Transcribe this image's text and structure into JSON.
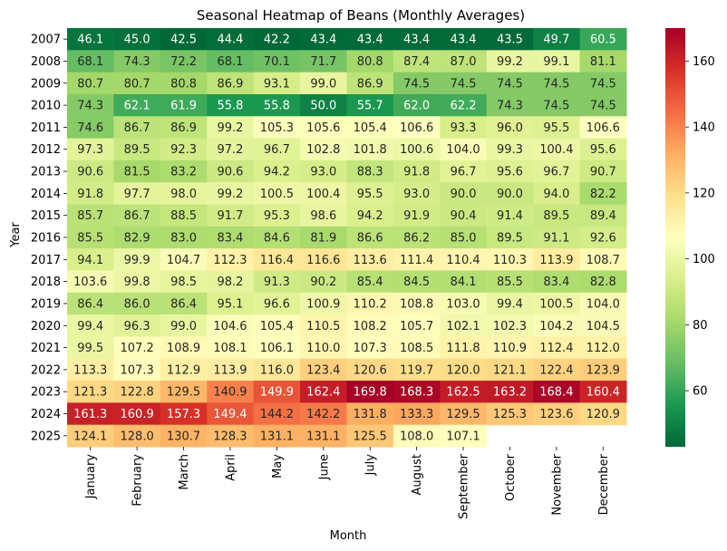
{
  "chart_data": {
    "type": "heatmap",
    "title": "Seasonal Heatmap of Beans (Monthly Averages)",
    "xlabel": "Month",
    "ylabel": "Year",
    "colormap": "RdYlGn_r",
    "colorbar": {
      "min": 43,
      "max": 170,
      "ticks": [
        60,
        80,
        100,
        120,
        140,
        160
      ]
    },
    "x": [
      "January",
      "February",
      "March",
      "April",
      "May",
      "June",
      "July",
      "August",
      "September",
      "October",
      "November",
      "December"
    ],
    "y": [
      "2007",
      "2008",
      "2009",
      "2010",
      "2011",
      "2012",
      "2013",
      "2014",
      "2015",
      "2016",
      "2017",
      "2018",
      "2019",
      "2020",
      "2021",
      "2022",
      "2023",
      "2024",
      "2025"
    ],
    "values": [
      [
        46.1,
        45.0,
        42.5,
        44.4,
        42.2,
        43.4,
        43.4,
        43.4,
        43.4,
        43.5,
        49.7,
        60.5
      ],
      [
        68.1,
        74.3,
        72.2,
        68.1,
        70.1,
        71.7,
        80.8,
        87.4,
        87.0,
        99.2,
        99.1,
        81.1
      ],
      [
        80.7,
        80.7,
        80.8,
        86.9,
        93.1,
        99.0,
        86.9,
        74.5,
        74.5,
        74.5,
        74.5,
        74.5
      ],
      [
        74.3,
        62.1,
        61.9,
        55.8,
        55.8,
        50.0,
        55.7,
        62.0,
        62.2,
        74.3,
        74.5,
        74.5
      ],
      [
        74.6,
        86.7,
        86.9,
        99.2,
        105.3,
        105.6,
        105.4,
        106.6,
        93.3,
        96.0,
        95.5,
        106.6
      ],
      [
        97.3,
        89.5,
        92.3,
        97.2,
        96.7,
        102.8,
        101.8,
        100.6,
        104.0,
        99.3,
        100.4,
        95.6
      ],
      [
        90.6,
        81.5,
        83.2,
        90.6,
        94.2,
        93.0,
        88.3,
        91.8,
        96.7,
        95.6,
        96.7,
        90.7
      ],
      [
        91.8,
        97.7,
        98.0,
        99.2,
        100.5,
        100.4,
        95.5,
        93.0,
        90.0,
        90.0,
        94.0,
        82.2
      ],
      [
        85.7,
        86.7,
        88.5,
        91.7,
        95.3,
        98.6,
        94.2,
        91.9,
        90.4,
        91.4,
        89.5,
        89.4
      ],
      [
        85.5,
        82.9,
        83.0,
        83.4,
        84.6,
        81.9,
        86.6,
        86.2,
        85.0,
        89.5,
        91.1,
        92.6
      ],
      [
        94.1,
        99.9,
        104.7,
        112.3,
        116.4,
        116.6,
        113.6,
        111.4,
        110.4,
        110.3,
        113.9,
        108.7
      ],
      [
        103.6,
        99.8,
        98.5,
        98.2,
        91.3,
        90.2,
        85.4,
        84.5,
        84.1,
        85.5,
        83.4,
        82.8
      ],
      [
        86.4,
        86.0,
        86.4,
        95.1,
        96.6,
        100.9,
        110.2,
        108.8,
        103.0,
        99.4,
        100.5,
        104.0
      ],
      [
        99.4,
        96.3,
        99.0,
        104.6,
        105.4,
        110.5,
        108.2,
        105.7,
        102.1,
        102.3,
        104.2,
        104.5
      ],
      [
        99.5,
        107.2,
        108.9,
        108.1,
        106.1,
        110.0,
        107.3,
        108.5,
        111.8,
        110.9,
        112.4,
        112.0
      ],
      [
        113.3,
        107.3,
        112.9,
        113.9,
        116.0,
        123.4,
        120.6,
        119.7,
        120.0,
        121.1,
        122.4,
        123.9
      ],
      [
        121.3,
        122.8,
        129.5,
        140.9,
        149.9,
        162.4,
        169.8,
        168.3,
        162.5,
        163.2,
        168.4,
        160.4
      ],
      [
        161.3,
        160.9,
        157.3,
        149.4,
        144.2,
        142.2,
        131.8,
        133.3,
        129.5,
        125.3,
        123.6,
        120.9
      ],
      [
        124.1,
        128.0,
        130.7,
        128.3,
        131.1,
        131.1,
        125.5,
        108.0,
        107.1,
        null,
        null,
        null
      ]
    ]
  }
}
